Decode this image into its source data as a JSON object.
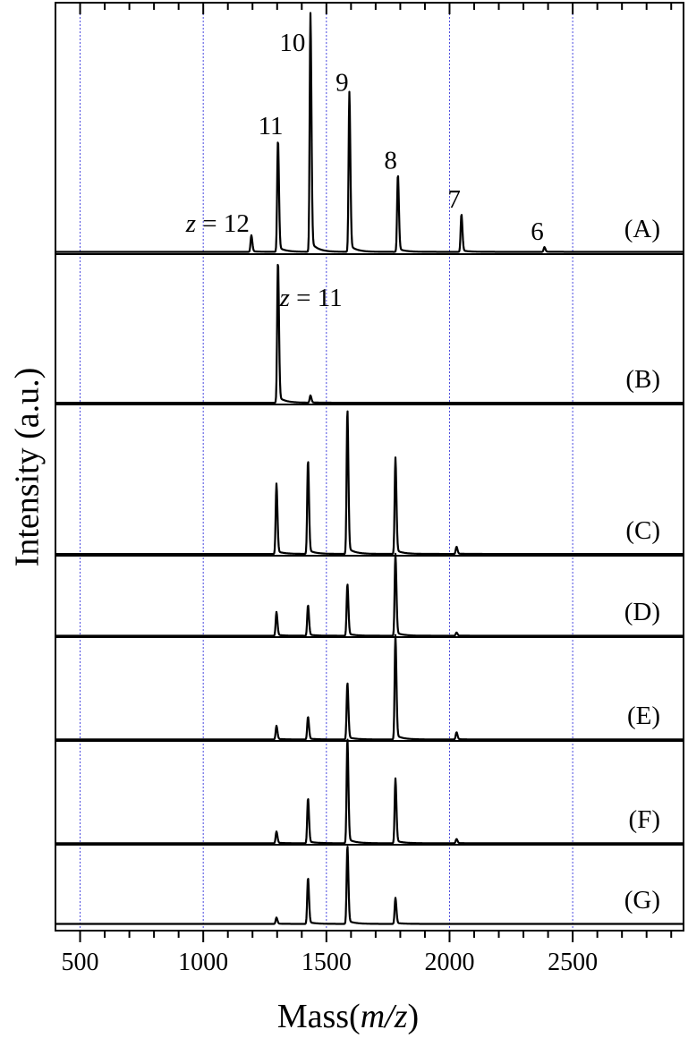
{
  "chart_data": {
    "type": "line",
    "title": "",
    "xlabel_parts": [
      "Mass(",
      "m/z",
      ")"
    ],
    "ylabel": "Intensity (a.u.)",
    "xlim": [
      400,
      2950
    ],
    "xticks": [
      500,
      1000,
      1500,
      2000,
      2500
    ],
    "minor_tick_step": 100,
    "grid_lines_x": [
      500,
      1000,
      1500,
      2000,
      2500
    ],
    "grid": true,
    "colors": {
      "trace": "#000000",
      "grid": "#4a4ae0",
      "frame": "#000000"
    },
    "series": [
      {
        "name": "(A)",
        "peaks": [
          {
            "x": 1195,
            "y": 0.07
          },
          {
            "x": 1303,
            "y": 0.48
          },
          {
            "x": 1435,
            "y": 1.0
          },
          {
            "x": 1593,
            "y": 0.67
          },
          {
            "x": 1790,
            "y": 0.33
          },
          {
            "x": 2048,
            "y": 0.16
          },
          {
            "x": 2385,
            "y": 0.02
          }
        ],
        "annotations": [
          {
            "x": 1195,
            "y": 0.07,
            "prefix": "z",
            "text": " = 12"
          },
          {
            "x": 1303,
            "y": 0.48,
            "text": "11"
          },
          {
            "x": 1435,
            "y": 1.0,
            "text": "10"
          },
          {
            "x": 1593,
            "y": 0.67,
            "text": "9"
          },
          {
            "x": 1790,
            "y": 0.33,
            "text": "8"
          },
          {
            "x": 2048,
            "y": 0.16,
            "text": "7"
          },
          {
            "x": 2385,
            "y": 0.02,
            "text": "6"
          }
        ]
      },
      {
        "name": "(B)",
        "peaks": [
          {
            "x": 1303,
            "y": 1.0
          },
          {
            "x": 1435,
            "y": 0.05
          }
        ],
        "annotations": [
          {
            "x": 1303,
            "y": 1.0,
            "prefix": "z",
            "text": " = 11"
          }
        ]
      },
      {
        "name": "(C)",
        "peaks": [
          {
            "x": 1297,
            "y": 0.48
          },
          {
            "x": 1425,
            "y": 0.65
          },
          {
            "x": 1585,
            "y": 1.0
          },
          {
            "x": 1780,
            "y": 0.66
          },
          {
            "x": 2028,
            "y": 0.05
          }
        ]
      },
      {
        "name": "(D)",
        "peaks": [
          {
            "x": 1297,
            "y": 0.29
          },
          {
            "x": 1425,
            "y": 0.38
          },
          {
            "x": 1585,
            "y": 0.64
          },
          {
            "x": 1780,
            "y": 1.0
          },
          {
            "x": 2028,
            "y": 0.04
          }
        ]
      },
      {
        "name": "(E)",
        "peaks": [
          {
            "x": 1297,
            "y": 0.13
          },
          {
            "x": 1425,
            "y": 0.22
          },
          {
            "x": 1585,
            "y": 0.55
          },
          {
            "x": 1780,
            "y": 1.0
          },
          {
            "x": 2028,
            "y": 0.07
          }
        ]
      },
      {
        "name": "(F)",
        "peaks": [
          {
            "x": 1297,
            "y": 0.11
          },
          {
            "x": 1425,
            "y": 0.43
          },
          {
            "x": 1585,
            "y": 1.0
          },
          {
            "x": 1780,
            "y": 0.61
          },
          {
            "x": 2028,
            "y": 0.04
          }
        ]
      },
      {
        "name": "(G)",
        "peaks": [
          {
            "x": 1297,
            "y": 0.08
          },
          {
            "x": 1425,
            "y": 0.59
          },
          {
            "x": 1585,
            "y": 1.0
          },
          {
            "x": 1780,
            "y": 0.33
          }
        ]
      }
    ]
  }
}
